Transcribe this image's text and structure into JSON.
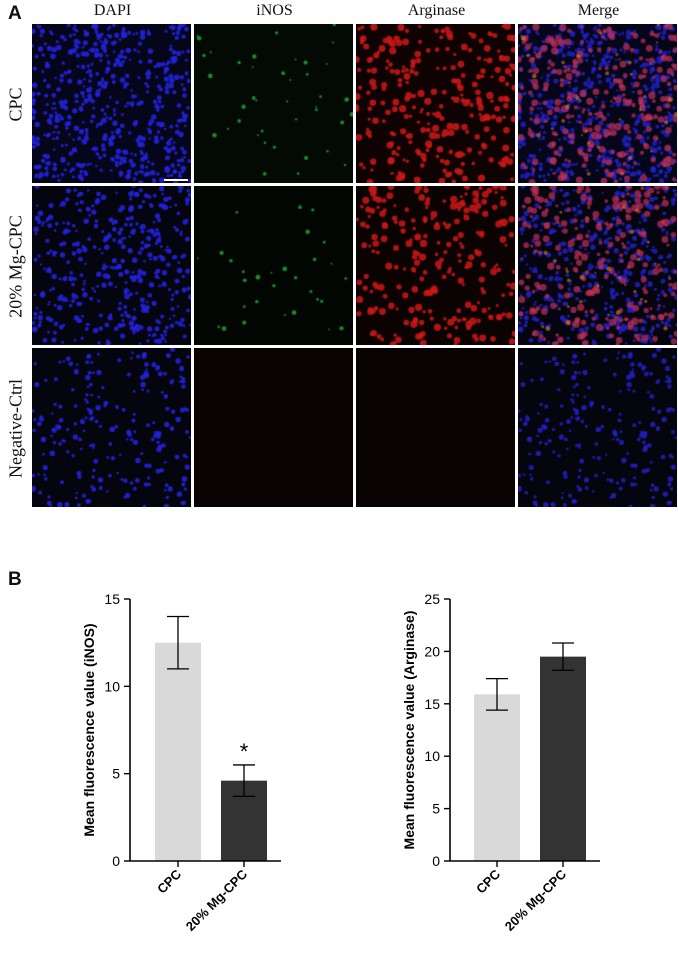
{
  "panel_a": {
    "letter": "A",
    "columns": [
      "DAPI",
      "iNOS",
      "Arginase",
      "Merge"
    ],
    "rows": [
      "CPC",
      "20% Mg-CPC",
      "Negative-Ctrl"
    ]
  },
  "panel_b": {
    "letter": "B"
  },
  "chart_data": [
    {
      "type": "bar",
      "categories": [
        "CPC",
        "20% Mg-CPC"
      ],
      "values": [
        12.5,
        4.6
      ],
      "errors": [
        1.5,
        0.9
      ],
      "annotations": [
        "",
        "*"
      ],
      "colors": [
        "#d9d9d9",
        "#333333"
      ],
      "ylabel": "Mean fluorescence value (iNOS)",
      "xlabel": "",
      "title": "",
      "ylim": [
        0,
        15
      ],
      "yticks": [
        0,
        5,
        10,
        15
      ]
    },
    {
      "type": "bar",
      "categories": [
        "CPC",
        "20% Mg-CPC"
      ],
      "values": [
        15.9,
        19.5
      ],
      "errors": [
        1.5,
        1.3
      ],
      "annotations": [
        "",
        ""
      ],
      "colors": [
        "#d9d9d9",
        "#333333"
      ],
      "ylabel": "Mean fluorescence value (Arginase)",
      "xlabel": "",
      "title": "",
      "ylim": [
        0,
        25
      ],
      "yticks": [
        0,
        5,
        10,
        15,
        20,
        25
      ]
    }
  ]
}
